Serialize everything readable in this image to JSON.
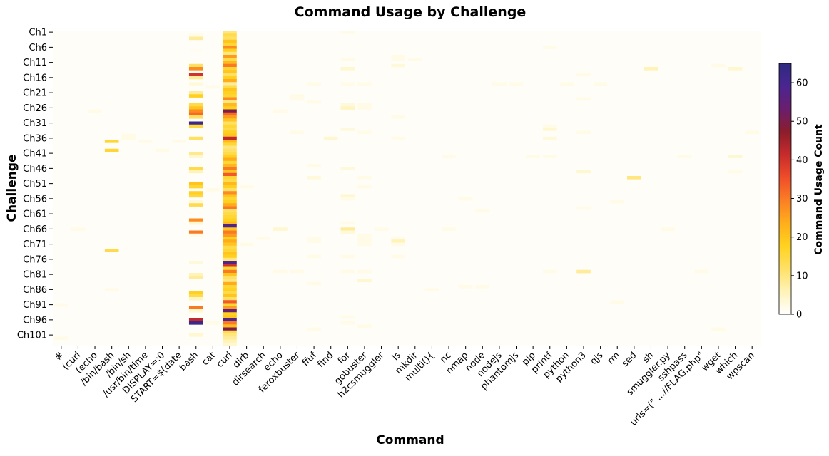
{
  "chart_data": {
    "type": "heatmap",
    "title": "Command Usage by Challenge",
    "xlabel": "Command",
    "ylabel": "Challenge",
    "colorbar_label": "Command Usage Count",
    "colorbar_range": [
      0,
      65
    ],
    "colorbar_ticks": [
      0,
      10,
      20,
      30,
      40,
      50,
      60
    ],
    "colormap": [
      "#ffffff",
      "#fff3b8",
      "#ffe066",
      "#ffd21f",
      "#ffae1c",
      "#fb7e24",
      "#ef4d2a",
      "#c62b2c",
      "#8b1d2b",
      "#6a1e6e",
      "#4a2690",
      "#2e2a80"
    ],
    "x_tick_labels": [
      "#",
      "(curl",
      "(echo",
      "/bin/bash",
      "/bin/sh",
      "/usr/bin/time",
      "DISPLAY=:0",
      "START=$(date",
      "bash",
      "cat",
      "curl",
      "dirb",
      "dirsearch",
      "echo",
      "feroxbuster",
      "ffuf",
      "find",
      "for",
      "gobuster",
      "h2csmuggler",
      "ls",
      "mkdir",
      "multi(){",
      "nc",
      "nmap",
      "node",
      "nodejs",
      "phantomjs",
      "pip",
      "printf",
      "python",
      "python3",
      "qjs",
      "rm",
      "sed",
      "sh",
      "smuggler.py",
      "sshpass",
      "urls=(\" ...//FLAG.php\"",
      "wget",
      "which",
      "wpscan"
    ],
    "y_tick_labels": [
      "Ch1",
      "Ch6",
      "Ch11",
      "Ch16",
      "Ch21",
      "Ch26",
      "Ch31",
      "Ch36",
      "Ch41",
      "Ch46",
      "Ch51",
      "Ch56",
      "Ch61",
      "Ch66",
      "Ch71",
      "Ch76",
      "Ch81",
      "Ch86",
      "Ch91",
      "Ch96",
      "Ch101"
    ],
    "y_tick_every": 5,
    "num_challenges": 104,
    "cells": [
      [
        "bash",
        [
          1,
          2,
          6,
          11,
          12,
          14,
          15,
          17,
          20,
          21,
          24,
          25,
          26,
          27,
          28,
          30,
          31,
          35,
          40,
          41,
          45,
          46,
          50,
          51,
          53,
          54,
          56,
          57,
          62,
          63,
          66,
          67,
          76,
          80,
          81,
          86,
          87,
          88,
          91,
          92,
          95,
          96,
          100
        ],
        [
          2,
          8,
          1,
          12,
          28,
          40,
          8,
          3,
          8,
          18,
          14,
          20,
          28,
          32,
          12,
          62,
          15,
          12,
          9,
          4,
          14,
          6,
          20,
          16,
          18,
          15,
          3,
          14,
          28,
          4,
          30,
          2,
          3,
          6,
          8,
          18,
          14,
          5,
          30,
          4,
          42,
          62,
          4
        ]
      ],
      [
        "curl",
        [
          0,
          1,
          2,
          3,
          4,
          5,
          6,
          7,
          8,
          9,
          10,
          11,
          12,
          13,
          14,
          15,
          16,
          17,
          18,
          19,
          20,
          21,
          22,
          23,
          24,
          25,
          26,
          27,
          28,
          29,
          30,
          31,
          32,
          33,
          34,
          35,
          36,
          37,
          38,
          39,
          40,
          41,
          42,
          43,
          44,
          45,
          46,
          47,
          48,
          49,
          50,
          51,
          52,
          53,
          54,
          55,
          56,
          57,
          58,
          59,
          60,
          61,
          62,
          63,
          64,
          65,
          66,
          67,
          68,
          69,
          70,
          71,
          72,
          73,
          74,
          75,
          76,
          77,
          78,
          79,
          80,
          81,
          82,
          83,
          84,
          85,
          86,
          87,
          88,
          89,
          90,
          91,
          92,
          93,
          94,
          95,
          96,
          97,
          98,
          99,
          100,
          101,
          102,
          103
        ],
        [
          10,
          14,
          12,
          20,
          16,
          28,
          18,
          10,
          26,
          14,
          22,
          30,
          16,
          20,
          12,
          18,
          24,
          8,
          14,
          20,
          18,
          16,
          28,
          10,
          22,
          18,
          50,
          32,
          26,
          20,
          12,
          16,
          14,
          18,
          20,
          42,
          22,
          16,
          10,
          12,
          14,
          18,
          24,
          16,
          22,
          30,
          20,
          34,
          16,
          14,
          22,
          18,
          12,
          28,
          20,
          16,
          18,
          24,
          30,
          12,
          14,
          16,
          18,
          22,
          58,
          20,
          30,
          26,
          18,
          24,
          20,
          14,
          16,
          20,
          18,
          10,
          58,
          40,
          16,
          30,
          20,
          12,
          10,
          24,
          16,
          18,
          14,
          20,
          12,
          34,
          16,
          26,
          54,
          18,
          20,
          58,
          30,
          22,
          50,
          14,
          10,
          8,
          6,
          4
        ]
      ],
      [
        "/bin/bash",
        [
          36,
          39,
          72,
          85
        ],
        [
          16,
          16,
          14,
          2
        ]
      ],
      [
        "#",
        [
          90,
          101
        ],
        [
          2,
          2
        ]
      ],
      [
        "(curl",
        [
          65
        ],
        [
          2
        ]
      ],
      [
        "(echo",
        [
          26
        ],
        [
          2
        ]
      ],
      [
        "/bin/sh",
        [
          34,
          35
        ],
        [
          2,
          2
        ]
      ],
      [
        "/usr/bin/time",
        [
          36
        ],
        [
          2
        ]
      ],
      [
        "DISPLAY=:0",
        [
          39
        ],
        [
          2
        ]
      ],
      [
        "START=$(date",
        [
          36
        ],
        [
          2
        ]
      ],
      [
        "cat",
        [
          18,
          52,
          96
        ],
        [
          2,
          2,
          2
        ]
      ],
      [
        "dirb",
        [
          51,
          70
        ],
        [
          2,
          2
        ]
      ],
      [
        "dirsearch",
        [
          68
        ],
        [
          2
        ]
      ],
      [
        "echo",
        [
          26,
          65,
          79
        ],
        [
          2,
          4,
          2
        ]
      ],
      [
        "feroxbuster",
        [
          21,
          22,
          33,
          79
        ],
        [
          2,
          2,
          2,
          2
        ]
      ],
      [
        "ffuf",
        [
          17,
          23,
          44,
          48,
          68,
          69,
          74,
          83,
          98
        ],
        [
          2,
          2,
          2,
          3,
          2,
          2,
          2,
          2,
          2
        ]
      ],
      [
        "find",
        [
          35
        ],
        [
          4
        ]
      ],
      [
        "for",
        [
          0,
          9,
          12,
          17,
          24,
          25,
          32,
          45,
          54,
          55,
          63,
          65,
          66,
          74,
          79,
          94,
          96
        ],
        [
          2,
          2,
          4,
          2,
          3,
          5,
          3,
          3,
          4,
          2,
          2,
          8,
          3,
          2,
          2,
          2,
          2
        ]
      ],
      [
        "gobuster",
        [
          17,
          24,
          25,
          33,
          48,
          51,
          67,
          68,
          69,
          70,
          79,
          82,
          97
        ],
        [
          2,
          2,
          2,
          2,
          2,
          2,
          2,
          2,
          2,
          2,
          2,
          4,
          2
        ]
      ],
      [
        "h2csmuggler",
        [
          65
        ],
        [
          2
        ]
      ],
      [
        "ls",
        [
          8,
          9,
          11,
          28,
          35,
          68,
          69,
          70,
          74
        ],
        [
          2,
          2,
          3,
          2,
          2,
          2,
          6,
          2,
          2
        ]
      ],
      [
        "mkdir",
        [
          9
        ],
        [
          2
        ]
      ],
      [
        "multi(){",
        [
          85
        ],
        [
          2
        ]
      ],
      [
        "nc",
        [
          41,
          65
        ],
        [
          2,
          2
        ]
      ],
      [
        "nmap",
        [
          55,
          84
        ],
        [
          2,
          2
        ]
      ],
      [
        "node",
        [
          59,
          84
        ],
        [
          2,
          2
        ]
      ],
      [
        "nodejs",
        [
          17
        ],
        [
          2
        ]
      ],
      [
        "phantomjs",
        [
          17
        ],
        [
          2
        ]
      ],
      [
        "pip",
        [
          41
        ],
        [
          2
        ]
      ],
      [
        "printf",
        [
          5,
          31,
          32,
          35,
          41,
          79
        ],
        [
          2,
          2,
          4,
          3,
          2,
          2
        ]
      ],
      [
        "python",
        [
          17
        ],
        [
          2
        ]
      ],
      [
        "python3",
        [
          14,
          22,
          33,
          46,
          58,
          79
        ],
        [
          2,
          2,
          2,
          4,
          2,
          8
        ]
      ],
      [
        "qjs",
        [
          17
        ],
        [
          2
        ]
      ],
      [
        "rm",
        [
          56,
          89
        ],
        [
          2,
          2
        ]
      ],
      [
        "sed",
        [
          48
        ],
        [
          10
        ]
      ],
      [
        "sh",
        [
          12
        ],
        [
          6
        ]
      ],
      [
        "smuggler.py",
        [
          65
        ],
        [
          2
        ]
      ],
      [
        "sshpass",
        [
          41
        ],
        [
          2
        ]
      ],
      [
        "urls=(\" ...//FLAG.php\"",
        [
          79
        ],
        [
          2
        ]
      ],
      [
        "wget",
        [
          11,
          98
        ],
        [
          2,
          2
        ]
      ],
      [
        "which",
        [
          12,
          41,
          46
        ],
        [
          4,
          4,
          2
        ]
      ],
      [
        "wpscan",
        [
          33
        ],
        [
          2
        ]
      ]
    ]
  }
}
